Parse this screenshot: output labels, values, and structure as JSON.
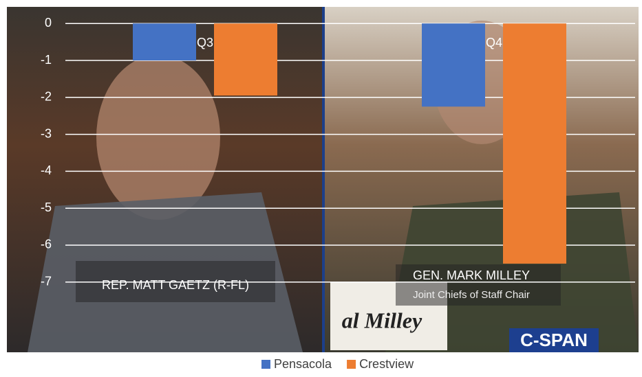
{
  "chart_data": {
    "type": "bar",
    "categories": [
      "Q3",
      "Q4"
    ],
    "series": [
      {
        "name": "Pensacola",
        "color": "#4472c4",
        "values": [
          -1,
          -2.25
        ]
      },
      {
        "name": "Crestview",
        "color": "#ed7d31",
        "values": [
          -1.95,
          -6.5
        ]
      }
    ],
    "ylim": [
      -8.9,
      0.45
    ],
    "yticks": [
      0,
      -1,
      -2,
      -3,
      -4,
      -5,
      -6,
      -7
    ],
    "grid": true,
    "legend": "bottom",
    "annotations": [
      "REP. MATT GAETZ (R-FL)",
      "GEN. MARK MILLEY",
      "Joint Chiefs of Staff Chair",
      "al Milley",
      "C-SPAN"
    ]
  }
}
